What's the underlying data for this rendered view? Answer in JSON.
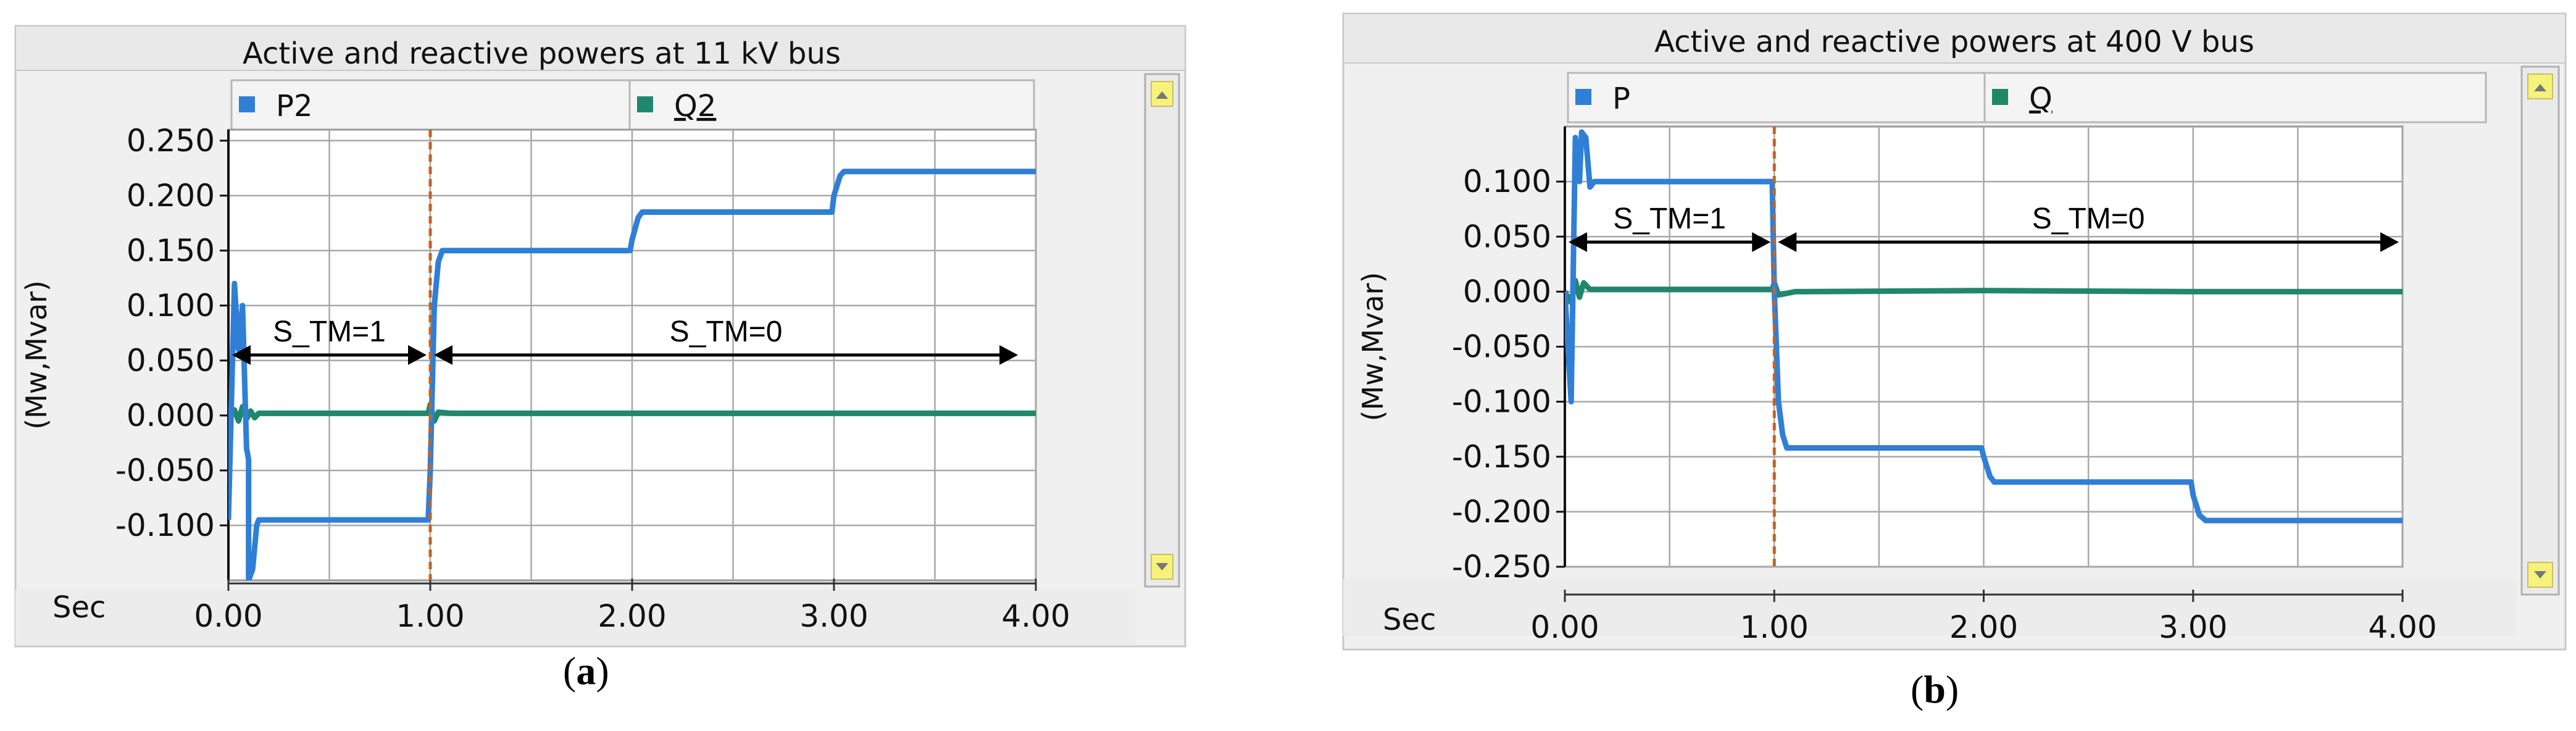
{
  "chart_data": [
    {
      "type": "line",
      "title": "Active and reactive powers at 11 kV bus",
      "ylabel": "(Mw,Mvar)",
      "xlabel": "Sec",
      "xlim": [
        0,
        4
      ],
      "ylim": [
        -0.15,
        0.26
      ],
      "xticks": [
        "0.00",
        "1.00",
        "2.00",
        "3.00",
        "4.00"
      ],
      "yticks": [
        "0.250",
        "0.200",
        "0.150",
        "0.100",
        "0.050",
        "0.000",
        "-0.050",
        "-0.100"
      ],
      "ytick_values": [
        0.25,
        0.2,
        0.15,
        0.1,
        0.05,
        0.0,
        -0.05,
        -0.1
      ],
      "grid": true,
      "legend": [
        "P2",
        "Q2"
      ],
      "series": [
        {
          "name": "P2",
          "color": "#2f7fd6",
          "x": [
            0.0,
            0.03,
            0.05,
            0.07,
            0.09,
            0.1,
            0.1,
            0.12,
            0.14,
            0.15,
            0.17,
            0.2,
            0.5,
            0.99,
            1.0,
            1.02,
            1.04,
            1.06,
            1.1,
            1.5,
            1.99,
            2.0,
            2.03,
            2.05,
            2.1,
            2.5,
            2.99,
            3.0,
            3.03,
            3.05,
            3.1,
            3.5,
            4.0
          ],
          "y": [
            -0.095,
            0.12,
            0.06,
            0.1,
            -0.03,
            -0.04,
            -0.15,
            -0.14,
            -0.1,
            -0.095,
            -0.095,
            -0.095,
            -0.095,
            -0.095,
            -0.05,
            0.1,
            0.14,
            0.15,
            0.15,
            0.15,
            0.15,
            0.16,
            0.18,
            0.185,
            0.185,
            0.185,
            0.185,
            0.2,
            0.218,
            0.222,
            0.222,
            0.222,
            0.222
          ]
        },
        {
          "name": "Q2",
          "color": "#21876c",
          "x": [
            0.0,
            0.03,
            0.05,
            0.07,
            0.09,
            0.11,
            0.13,
            0.15,
            0.2,
            0.99,
            1.0,
            1.02,
            1.04,
            1.1,
            2.0,
            3.0,
            4.0
          ],
          "y": [
            0.0,
            0.005,
            -0.005,
            0.008,
            -0.003,
            0.004,
            -0.002,
            0.002,
            0.002,
            0.002,
            0.01,
            -0.005,
            0.003,
            0.002,
            0.002,
            0.002,
            0.002
          ]
        }
      ],
      "annotations": [
        {
          "text": "S_TM=1",
          "x_from": 0.0,
          "x_to": 1.0,
          "y": 0.055
        },
        {
          "text": "S_TM=0",
          "x_from": 1.0,
          "x_to": 3.93,
          "y": 0.055
        }
      ],
      "event_line_x": 1.0,
      "caption": "(a)"
    },
    {
      "type": "line",
      "title": "Active and reactive powers at 400 V bus",
      "ylabel": "(Mw,Mvar)",
      "xlabel": "Sec",
      "xlim": [
        0,
        4
      ],
      "ylim": [
        -0.25,
        0.15
      ],
      "xticks": [
        "0.00",
        "1.00",
        "2.00",
        "3.00",
        "4.00"
      ],
      "yticks": [
        "0.100",
        "0.050",
        "0.000",
        "-0.050",
        "-0.100",
        "-0.150",
        "-0.200",
        "-0.250"
      ],
      "ytick_values": [
        0.1,
        0.05,
        0.0,
        -0.05,
        -0.1,
        -0.15,
        -0.2,
        -0.25
      ],
      "grid": true,
      "legend": [
        "P",
        "Q"
      ],
      "series": [
        {
          "name": "P",
          "color": "#2f7fd6",
          "x": [
            0.0,
            0.03,
            0.05,
            0.07,
            0.08,
            0.1,
            0.12,
            0.14,
            0.2,
            0.5,
            0.99,
            1.0,
            1.02,
            1.04,
            1.06,
            1.1,
            1.5,
            1.99,
            2.0,
            2.03,
            2.05,
            2.1,
            2.5,
            2.99,
            3.0,
            3.03,
            3.06,
            3.1,
            3.5,
            4.0
          ],
          "y": [
            0.0,
            -0.1,
            0.14,
            0.1,
            0.145,
            0.14,
            0.095,
            0.1,
            0.1,
            0.1,
            0.1,
            0.0,
            -0.1,
            -0.13,
            -0.142,
            -0.142,
            -0.142,
            -0.142,
            -0.15,
            -0.168,
            -0.173,
            -0.173,
            -0.173,
            -0.173,
            -0.185,
            -0.203,
            -0.208,
            -0.208,
            -0.208,
            -0.208
          ]
        },
        {
          "name": "Q",
          "color": "#21876c",
          "x": [
            0.0,
            0.03,
            0.05,
            0.07,
            0.09,
            0.12,
            0.2,
            0.99,
            1.0,
            1.02,
            1.1,
            2.0,
            3.0,
            4.0
          ],
          "y": [
            0.0,
            -0.01,
            0.01,
            -0.005,
            0.008,
            0.002,
            0.002,
            0.002,
            0.008,
            -0.003,
            0.0,
            0.001,
            0.0,
            0.0
          ]
        }
      ],
      "annotations": [
        {
          "text": "S_TM=1",
          "x_from": 0.0,
          "x_to": 1.0,
          "y": 0.045
        },
        {
          "text": "S_TM=0",
          "x_from": 1.0,
          "x_to": 4.0,
          "y": 0.045
        }
      ],
      "event_line_x": 1.0,
      "caption": "(b)"
    }
  ]
}
